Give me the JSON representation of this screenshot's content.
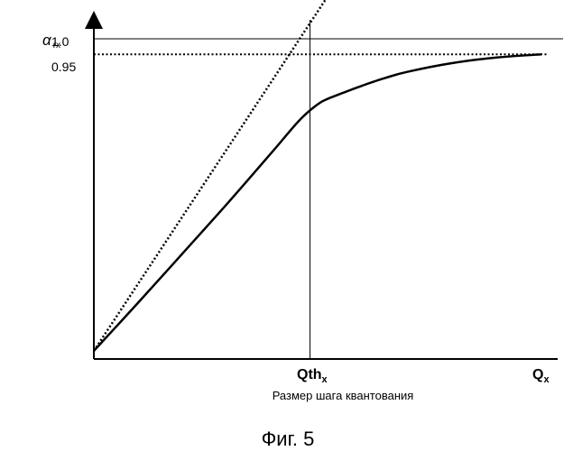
{
  "chart_data": {
    "type": "line",
    "y_axis_symbol": "α",
    "y_axis_subscript": "rx",
    "x_axis_symbol": "Q",
    "x_axis_subscript": "x",
    "threshold_label": "Qth",
    "threshold_subscript": "x",
    "y_ticks": [
      "1.0",
      "0.95"
    ],
    "xlabel": "Размер шага квантования",
    "caption": "Фиг. 5",
    "reference_lines": [
      {
        "kind": "horizontal",
        "value": 1.0,
        "style": "solid"
      },
      {
        "kind": "horizontal",
        "value": 0.95,
        "style": "dotted"
      },
      {
        "kind": "vertical",
        "at": "Qth_x",
        "style": "solid"
      }
    ],
    "series": [
      {
        "style": "solid",
        "x": [
          0.0,
          0.1,
          0.2,
          0.3,
          0.4,
          0.46,
          0.5,
          0.52,
          0.55,
          0.6,
          0.65,
          0.7,
          0.8,
          0.9,
          1.0
        ],
        "y": [
          0.0,
          0.156,
          0.315,
          0.475,
          0.64,
          0.74,
          0.79,
          0.806,
          0.823,
          0.85,
          0.874,
          0.894,
          0.922,
          0.94,
          0.95
        ]
      },
      {
        "style": "dotted",
        "x": [
          0.0,
          0.545
        ],
        "y": [
          0.0,
          1.185
        ]
      }
    ],
    "xlim": [
      0,
      1
    ],
    "ylim": [
      0,
      1.1
    ],
    "grid": false
  }
}
